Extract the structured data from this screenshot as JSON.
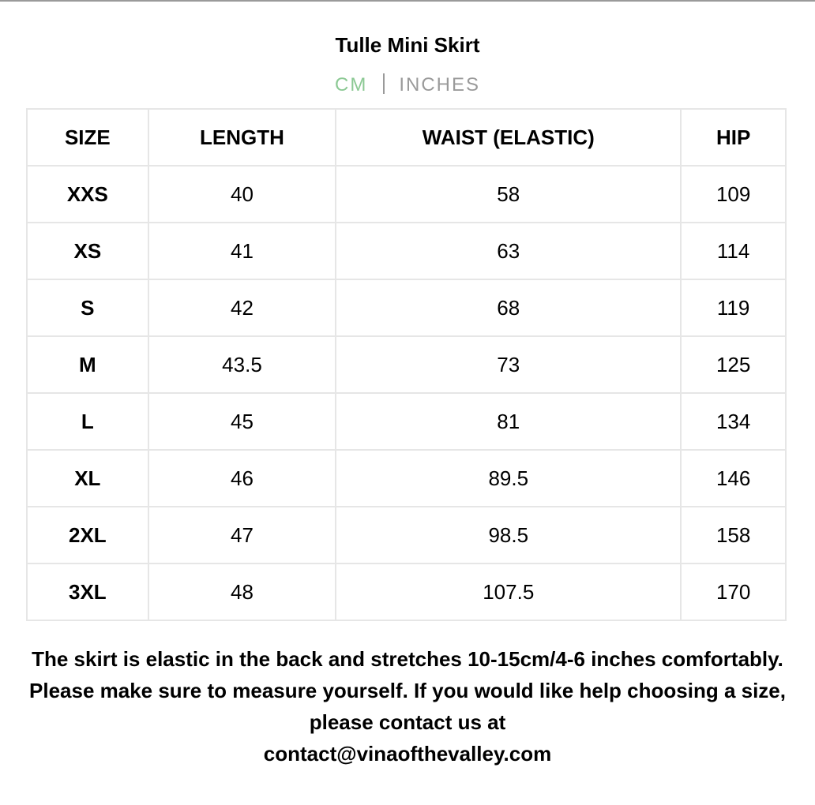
{
  "title": "Tulle Mini Skirt",
  "units": {
    "cm": "CM",
    "inches": "INCHES",
    "active": "CM",
    "active_color": "#8cc994",
    "inactive_color": "#9a9a9a"
  },
  "table": {
    "headers": [
      "SIZE",
      "LENGTH",
      "WAIST (ELASTIC)",
      "HIP"
    ],
    "rows": [
      [
        "XXS",
        "40",
        "58",
        "109"
      ],
      [
        "XS",
        "41",
        "63",
        "114"
      ],
      [
        "S",
        "42",
        "68",
        "119"
      ],
      [
        "M",
        "43.5",
        "73",
        "125"
      ],
      [
        "L",
        "45",
        "81",
        "134"
      ],
      [
        "XL",
        "46",
        "89.5",
        "146"
      ],
      [
        "2XL",
        "47",
        "98.5",
        "158"
      ],
      [
        "3XL",
        "48",
        "107.5",
        "170"
      ]
    ]
  },
  "note": {
    "text": "The skirt is elastic in the back and stretches 10-15cm/4-6 inches comfortably. Please make sure to measure yourself. If you would like help choosing a size, please contact us at",
    "email": "contact@vinaofthevalley.com"
  }
}
